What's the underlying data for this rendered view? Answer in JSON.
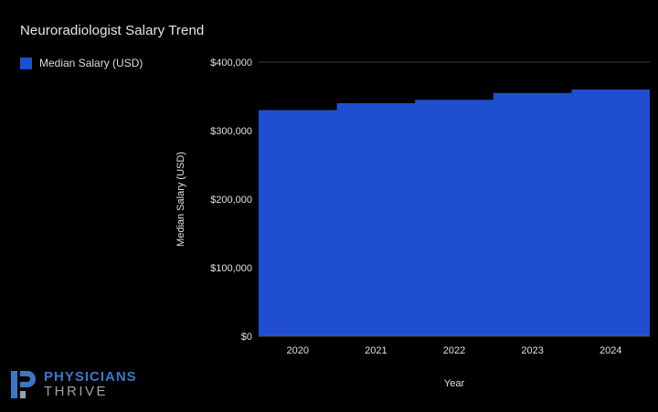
{
  "brand": {
    "line1": "PHYSICIANS",
    "line2": "THRIVE",
    "logo_icon": "physicians-thrive-p-logo"
  },
  "colors": {
    "background": "#000000",
    "series": "#1f4fd0",
    "grid": "#3a3a3a",
    "text": "#e0e0e0"
  },
  "chart_data": {
    "type": "area",
    "title": "Neuroradiologist Salary Trend",
    "xlabel": "Year",
    "ylabel": "Median Salary (USD)",
    "categories": [
      "2020",
      "2021",
      "2022",
      "2023",
      "2024"
    ],
    "series": [
      {
        "name": "Median Salary (USD)",
        "values": [
          330000,
          340000,
          345000,
          355000,
          360000
        ]
      }
    ],
    "ylim": [
      0,
      400000
    ],
    "yticks": [
      0,
      100000,
      200000,
      300000,
      400000
    ],
    "ytick_labels": [
      "$0",
      "$100,000",
      "$200,000",
      "$300,000",
      "$400,000"
    ],
    "grid": true,
    "legend_position": "top-left"
  }
}
